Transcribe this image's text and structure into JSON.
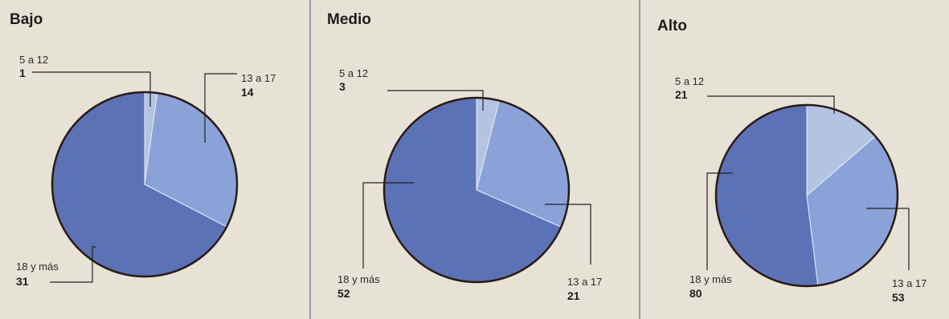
{
  "chart_data": [
    {
      "type": "pie",
      "title": "Bajo",
      "slices": [
        {
          "label": "5 a 12",
          "value": 1,
          "color": "#b3c3e2"
        },
        {
          "label": "13 a 17",
          "value": 14,
          "color": "#8aa2d8"
        },
        {
          "label": "18 y más",
          "value": 31,
          "color": "#5c72b6"
        }
      ]
    },
    {
      "type": "pie",
      "title": "Medio",
      "slices": [
        {
          "label": "5 a 12",
          "value": 3,
          "color": "#b3c3e2"
        },
        {
          "label": "13 a 17",
          "value": 21,
          "color": "#8aa2d8"
        },
        {
          "label": "18 y más",
          "value": 52,
          "color": "#5c72b6"
        }
      ]
    },
    {
      "type": "pie",
      "title": "Alto",
      "slices": [
        {
          "label": "5 a 12",
          "value": 21,
          "color": "#b3c3e2"
        },
        {
          "label": "13 a 17",
          "value": 53,
          "color": "#8aa2d8"
        },
        {
          "label": "18 y más",
          "value": 80,
          "color": "#5c72b6"
        }
      ]
    }
  ]
}
